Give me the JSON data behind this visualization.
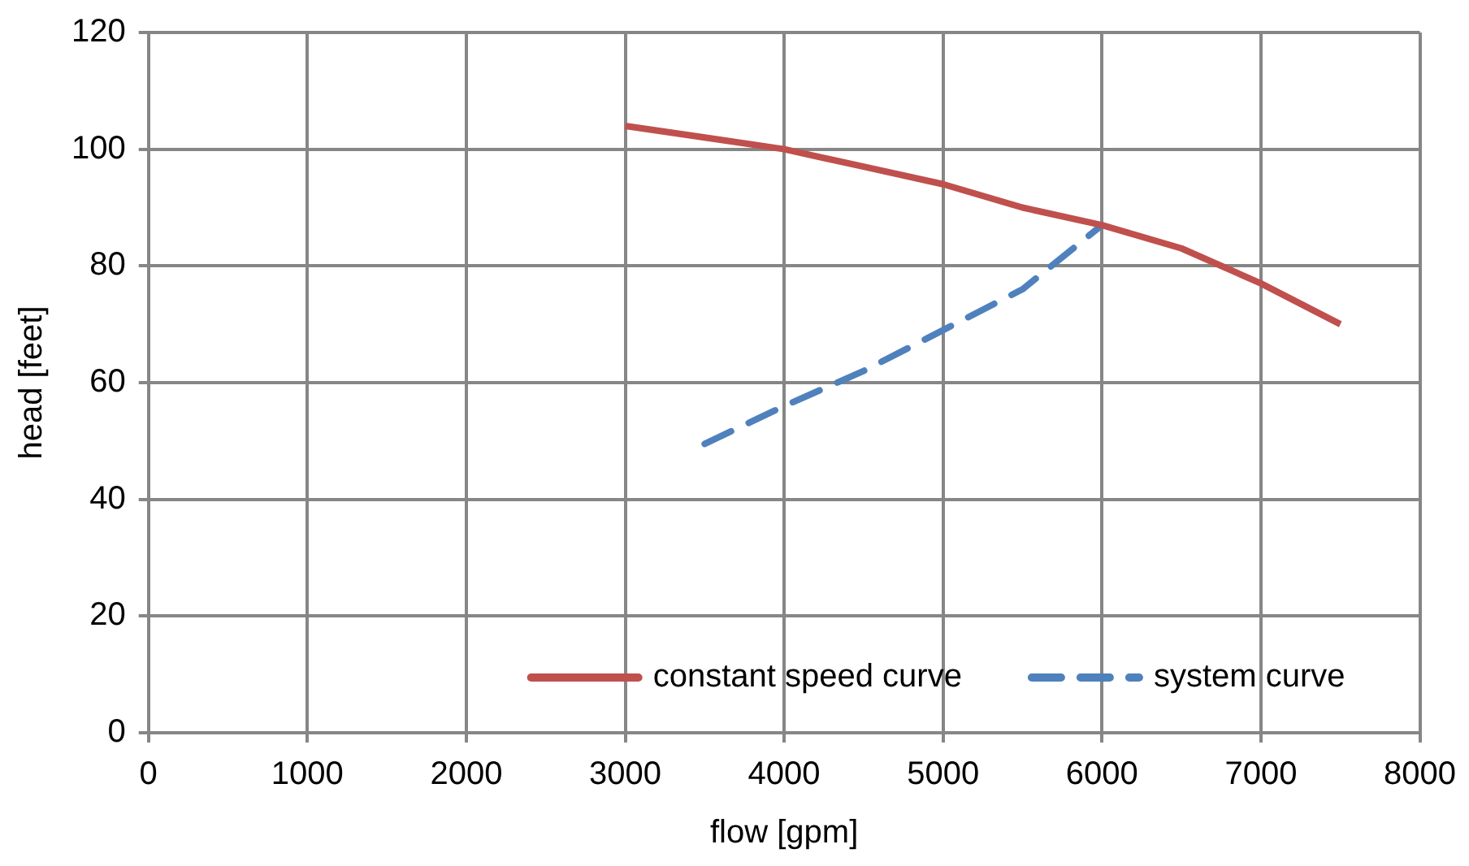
{
  "chart_data": {
    "type": "line",
    "xlabel": "flow [gpm]",
    "ylabel": "head [feet]",
    "xlim": [
      0,
      8000
    ],
    "xticks": [
      0,
      1000,
      2000,
      3000,
      4000,
      5000,
      6000,
      7000,
      8000
    ],
    "ylim": [
      0,
      120
    ],
    "yticks": [
      0,
      20,
      40,
      60,
      80,
      100,
      120
    ],
    "grid": true,
    "legend": "bottom right",
    "marker": "none",
    "series": [
      {
        "name": "constant speed curve",
        "color": "#c0504d",
        "line_style": "solid",
        "x": [
          3000,
          3500,
          4000,
          4500,
          5000,
          5500,
          6000,
          6500,
          7000,
          7500
        ],
        "values": [
          104,
          102,
          100,
          97,
          94,
          90,
          87,
          83,
          77,
          70
        ]
      },
      {
        "name": "system curve",
        "color": "#4f81bd",
        "line_style": "dashed",
        "x": [
          3500,
          4000,
          4500,
          5000,
          5500,
          6000
        ],
        "values": [
          49.5,
          56,
          62,
          69,
          76,
          87
        ]
      }
    ]
  }
}
